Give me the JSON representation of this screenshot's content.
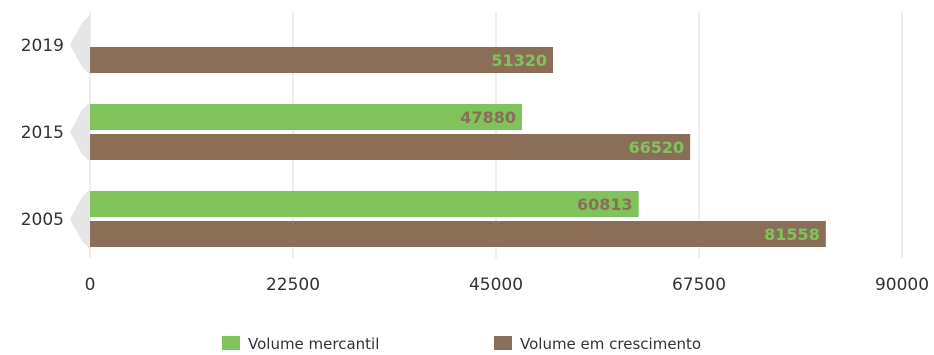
{
  "chart_data": {
    "type": "bar",
    "orientation": "horizontal",
    "categories": [
      "2019",
      "2015",
      "2005"
    ],
    "series": [
      {
        "name": "Volume mercantil",
        "color": "#80c35b",
        "label_color": "#8a6e57",
        "values": [
          null,
          47880,
          60813
        ]
      },
      {
        "name": "Volume em crescimento",
        "color": "#8a6e57",
        "label_color": "#80c35b",
        "values": [
          51320,
          66520,
          81558
        ]
      }
    ],
    "xlim": [
      0,
      90000
    ],
    "xticks": [
      "0",
      "22500",
      "45000",
      "67500",
      "90000"
    ],
    "grid": "vertical",
    "legend_position": "bottom",
    "title": "",
    "xlabel": "",
    "ylabel": ""
  }
}
